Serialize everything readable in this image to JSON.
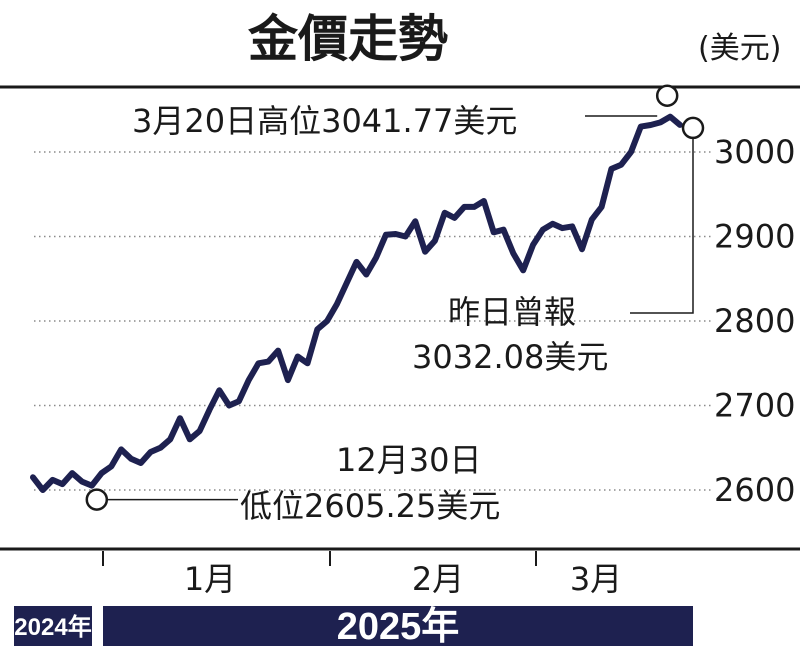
{
  "chart_data": {
    "type": "line",
    "title": "金價走勢",
    "unit": "(美元)",
    "ylim": [
      2560,
      3080
    ],
    "y_ticks": [
      2600,
      2700,
      2800,
      2900,
      3000
    ],
    "grid": "horizontal-dotted",
    "months": [
      "1月",
      "2月",
      "3月"
    ],
    "years": [
      "2024年",
      "2025年"
    ],
    "series": [
      {
        "values": [
          2615,
          2600,
          2612,
          2607,
          2620,
          2610,
          2605.25,
          2620,
          2628,
          2648,
          2637,
          2632,
          2645,
          2650,
          2660,
          2685,
          2660,
          2670,
          2695,
          2718,
          2700,
          2705,
          2730,
          2750,
          2752,
          2765,
          2730,
          2758,
          2750,
          2790,
          2800,
          2820,
          2845,
          2870,
          2855,
          2875,
          2902,
          2903,
          2900,
          2918,
          2882,
          2895,
          2928,
          2922,
          2935,
          2935,
          2942,
          2905,
          2908,
          2880,
          2860,
          2890,
          2908,
          2915,
          2910,
          2912,
          2885,
          2920,
          2935,
          2980,
          2985,
          3000,
          3030,
          3032,
          3035,
          3041.77,
          3032.08
        ]
      }
    ],
    "annotations": {
      "high_label": "3月20日高位3041.77美元",
      "high_value": 3041.77,
      "latest_line1": "昨日曾報",
      "latest_line2": "3032.08美元",
      "latest_value": 3032.08,
      "low_line1": "12月30日",
      "low_line2": "低位2605.25美元",
      "low_value": 2605.25
    }
  }
}
